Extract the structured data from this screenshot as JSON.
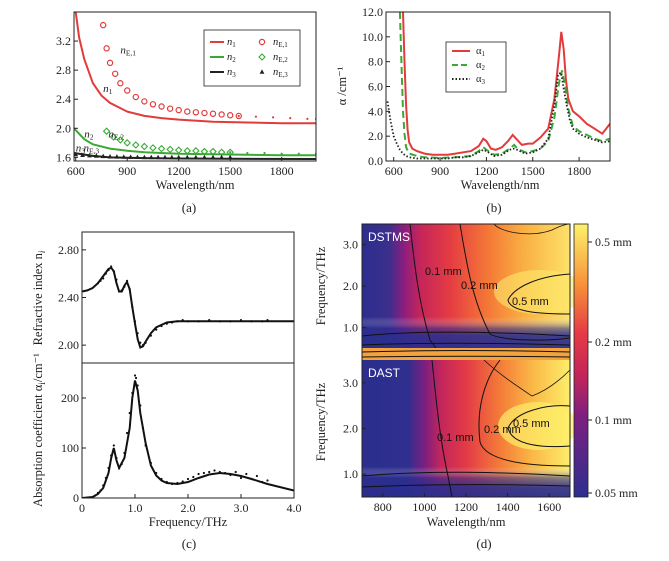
{
  "chart_data": [
    {
      "id": "a",
      "type": "line",
      "caption": "(a)",
      "xlabel": "Wavelength/nm",
      "xlim": [
        590,
        2000
      ],
      "ylim": [
        1.55,
        3.6
      ],
      "x_ticks": [
        "600",
        "900",
        "1200",
        "1500",
        "1800"
      ],
      "y_ticks": [
        "1.6",
        "2.0",
        "2.4",
        "2.8",
        "3.2"
      ],
      "series": [
        {
          "name": "n1",
          "color": "#e23b3b",
          "style": "solid",
          "x": [
            600,
            620,
            650,
            700,
            750,
            800,
            900,
            1000,
            1100,
            1200,
            1400,
            1600,
            1800,
            2000
          ],
          "y": [
            3.6,
            3.25,
            2.95,
            2.62,
            2.45,
            2.35,
            2.23,
            2.17,
            2.14,
            2.12,
            2.09,
            2.08,
            2.07,
            2.07
          ]
        },
        {
          "name": "n2",
          "color": "#3aaa35",
          "style": "solid",
          "x": [
            590,
            650,
            700,
            800,
            900,
            1000,
            1200,
            1500,
            1800,
            2000
          ],
          "y": [
            2.0,
            1.85,
            1.78,
            1.72,
            1.69,
            1.67,
            1.65,
            1.64,
            1.63,
            1.63
          ]
        },
        {
          "name": "n3",
          "color": "#222222",
          "style": "solid",
          "x": [
            590,
            700,
            800,
            1000,
            1200,
            1500,
            2000
          ],
          "y": [
            1.66,
            1.62,
            1.6,
            1.59,
            1.585,
            1.58,
            1.578
          ]
        },
        {
          "name": "nE,1",
          "color": "#e23b3b",
          "style": "circles",
          "x": [
            760,
            780,
            800,
            830,
            860,
            900,
            950,
            1000,
            1050,
            1100,
            1150,
            1200,
            1250,
            1300,
            1350,
            1400,
            1450,
            1500,
            1550
          ],
          "y": [
            3.42,
            3.1,
            2.9,
            2.75,
            2.62,
            2.52,
            2.43,
            2.37,
            2.33,
            2.3,
            2.27,
            2.25,
            2.23,
            2.22,
            2.21,
            2.2,
            2.19,
            2.18,
            2.17
          ]
        },
        {
          "name": "nE,1 fit",
          "color": "#e23b3b",
          "style": "dots",
          "x": [
            1550,
            1650,
            1750,
            1850,
            1950,
            2000
          ],
          "y": [
            2.17,
            2.16,
            2.15,
            2.14,
            2.13,
            2.13
          ]
        },
        {
          "name": "nE,2",
          "color": "#3aaa35",
          "style": "diamonds",
          "x": [
            780,
            820,
            860,
            900,
            950,
            1000,
            1050,
            1100,
            1150,
            1200,
            1250,
            1300,
            1350,
            1400,
            1450,
            1500
          ],
          "y": [
            1.96,
            1.88,
            1.84,
            1.8,
            1.77,
            1.75,
            1.73,
            1.72,
            1.71,
            1.7,
            1.69,
            1.69,
            1.68,
            1.68,
            1.67,
            1.67
          ]
        },
        {
          "name": "nE,2 fit",
          "color": "#3aaa35",
          "style": "dots",
          "x": [
            1500,
            1600,
            1700,
            1800,
            1900,
            2000
          ],
          "y": [
            1.67,
            1.66,
            1.66,
            1.65,
            1.65,
            1.65
          ]
        },
        {
          "name": "nE,3",
          "color": "#222222",
          "style": "triangles",
          "x": [
            600,
            640,
            680,
            720,
            760,
            800,
            840,
            880,
            920,
            960,
            1000,
            1040,
            1080,
            1120,
            1160,
            1200,
            1250,
            1300,
            1350,
            1400,
            1450,
            1500
          ],
          "y": [
            1.64,
            1.63,
            1.625,
            1.62,
            1.615,
            1.61,
            1.608,
            1.606,
            1.604,
            1.602,
            1.6,
            1.6,
            1.6,
            1.6,
            1.6,
            1.6,
            1.6,
            1.6,
            1.6,
            1.6,
            1.6,
            1.6
          ]
        }
      ],
      "annotations": [
        {
          "text": "n",
          "sub": "E,1",
          "x": 860,
          "y": 3.03
        },
        {
          "text": "n",
          "sub": "1",
          "x": 760,
          "y": 2.5
        },
        {
          "text": "n",
          "sub": "2",
          "x": 650,
          "y": 1.87
        },
        {
          "text": "n",
          "sub": "E,2",
          "x": 790,
          "y": 1.87
        },
        {
          "text": "n",
          "sub": "3",
          "x": 600,
          "y": 1.68
        },
        {
          "text": "n",
          "sub": "E,3",
          "x": 645,
          "y": 1.68
        }
      ],
      "legend": {
        "placement": "top-right",
        "items": [
          {
            "label": "n",
            "sub": "1",
            "color": "#e23b3b",
            "mark": "line"
          },
          {
            "label": "n",
            "sub": "E,1",
            "color": "#e23b3b",
            "mark": "circle"
          },
          {
            "label": "n",
            "sub": "2",
            "color": "#3aaa35",
            "mark": "line"
          },
          {
            "label": "n",
            "sub": "E,2",
            "color": "#3aaa35",
            "mark": "diamond"
          },
          {
            "label": "n",
            "sub": "3",
            "color": "#222222",
            "mark": "line"
          },
          {
            "label": "n",
            "sub": "E,3",
            "color": "#222222",
            "mark": "triangle"
          }
        ]
      }
    },
    {
      "id": "b",
      "type": "line",
      "caption": "(b)",
      "xlabel": "Wavelength/nm",
      "ylabel": "α /cm⁻¹",
      "xlim": [
        550,
        2000
      ],
      "ylim": [
        0,
        12
      ],
      "x_ticks": [
        "600",
        "900",
        "1200",
        "1500",
        "1800"
      ],
      "y_ticks": [
        "0.0",
        "2.0",
        "4.0",
        "6.0",
        "8.0",
        "10.0",
        "12.0"
      ],
      "series": [
        {
          "name": "α1",
          "color": "#e23b3b",
          "style": "solid",
          "x": [
            660,
            670,
            680,
            690,
            700,
            720,
            750,
            800,
            850,
            900,
            950,
            1000,
            1050,
            1100,
            1150,
            1180,
            1200,
            1230,
            1260,
            1300,
            1340,
            1370,
            1400,
            1430,
            1470,
            1500,
            1550,
            1600,
            1640,
            1670,
            1685,
            1700,
            1715,
            1730,
            1760,
            1800,
            1850,
            1900,
            1950,
            2000
          ],
          "y": [
            12,
            8,
            4.5,
            2.5,
            1.5,
            1.0,
            0.8,
            0.6,
            0.5,
            0.5,
            0.5,
            0.6,
            0.7,
            0.8,
            1.2,
            1.8,
            1.6,
            1.0,
            0.9,
            1.1,
            1.6,
            2.1,
            1.7,
            1.3,
            1.4,
            1.4,
            1.9,
            2.6,
            5.0,
            8.5,
            10.4,
            9.0,
            6.5,
            5.0,
            4.0,
            3.6,
            3.0,
            2.6,
            2.2,
            3.0
          ]
        },
        {
          "name": "α2",
          "color": "#3aaa35",
          "style": "dashed",
          "x": [
            640,
            650,
            660,
            670,
            680,
            700,
            750,
            800,
            900,
            1000,
            1100,
            1150,
            1180,
            1200,
            1250,
            1300,
            1350,
            1380,
            1400,
            1450,
            1500,
            1550,
            1600,
            1640,
            1670,
            1690,
            1710,
            1730,
            1760,
            1800,
            1850,
            1900,
            1950,
            2000
          ],
          "y": [
            12,
            8,
            4,
            2.2,
            1.1,
            0.6,
            0.4,
            0.3,
            0.25,
            0.3,
            0.4,
            0.8,
            1.1,
            0.9,
            0.5,
            0.6,
            1.0,
            1.3,
            1.0,
            0.7,
            0.8,
            1.0,
            1.6,
            3.5,
            6.3,
            7.3,
            6.0,
            4.2,
            2.8,
            2.4,
            2.1,
            1.8,
            1.6,
            1.8
          ]
        },
        {
          "name": "α3",
          "color": "#222222",
          "style": "dotted",
          "x": [
            560,
            580,
            600,
            620,
            640,
            660,
            680,
            700,
            750,
            800,
            850,
            900,
            950,
            1000,
            1050,
            1100,
            1150,
            1180,
            1200,
            1250,
            1300,
            1350,
            1380,
            1400,
            1450,
            1500,
            1550,
            1600,
            1640,
            1665,
            1685,
            1700,
            1720,
            1740,
            1760,
            1800,
            1850,
            1900,
            1950,
            2000
          ],
          "y": [
            4.8,
            3.2,
            2.0,
            1.4,
            0.9,
            0.6,
            0.4,
            0.3,
            0.2,
            0.2,
            0.2,
            0.2,
            0.2,
            0.3,
            0.3,
            0.4,
            0.7,
            0.9,
            0.8,
            0.4,
            0.5,
            0.9,
            1.0,
            0.9,
            0.6,
            0.7,
            1.0,
            1.8,
            4.5,
            7.0,
            7.1,
            5.8,
            4.5,
            3.3,
            2.6,
            2.2,
            1.9,
            1.7,
            1.5,
            1.6
          ]
        }
      ],
      "legend": {
        "placement": "top-left",
        "items": [
          {
            "label": "α",
            "sub": "1",
            "color": "#e23b3b",
            "mark": "solid"
          },
          {
            "label": "α",
            "sub": "2",
            "color": "#3aaa35",
            "mark": "dashed"
          },
          {
            "label": "α",
            "sub": "3",
            "color": "#222222",
            "mark": "dotted"
          }
        ]
      }
    },
    {
      "id": "c-top",
      "type": "line",
      "ylabel": "Refractive index n",
      "ylabel_sub": "i",
      "xlim": [
        0,
        4.0
      ],
      "ylim": [
        1.85,
        2.95
      ],
      "y_ticks": [
        "2.00",
        "2.40",
        "2.80"
      ],
      "series": [
        {
          "name": "fit",
          "color": "#111111",
          "style": "solid",
          "x": [
            0,
            0.1,
            0.2,
            0.3,
            0.4,
            0.5,
            0.55,
            0.6,
            0.65,
            0.7,
            0.75,
            0.8,
            0.85,
            0.9,
            0.95,
            1.0,
            1.05,
            1.1,
            1.15,
            1.2,
            1.3,
            1.4,
            1.5,
            1.6,
            1.8,
            2.0,
            2.5,
            3.0,
            3.5,
            4.0
          ],
          "y": [
            2.45,
            2.46,
            2.48,
            2.52,
            2.58,
            2.64,
            2.65,
            2.62,
            2.52,
            2.45,
            2.45,
            2.5,
            2.53,
            2.47,
            2.32,
            2.18,
            2.05,
            1.98,
            1.99,
            2.03,
            2.1,
            2.15,
            2.17,
            2.19,
            2.2,
            2.2,
            2.2,
            2.2,
            2.2,
            2.2
          ]
        },
        {
          "name": "data",
          "color": "#111111",
          "style": "dots",
          "x": [
            0.3,
            0.35,
            0.4,
            0.45,
            0.5,
            0.55,
            0.6,
            0.65,
            0.7,
            0.75,
            0.8,
            0.85,
            0.9,
            0.95,
            1.0,
            1.05,
            1.1,
            1.15,
            1.2,
            1.3,
            1.4,
            1.5,
            1.6,
            1.7,
            1.8,
            1.9,
            2.0,
            2.2,
            2.4,
            2.6,
            2.8,
            3.0,
            3.2,
            3.4,
            3.5
          ],
          "y": [
            2.52,
            2.54,
            2.56,
            2.6,
            2.63,
            2.66,
            2.62,
            2.55,
            2.45,
            2.46,
            2.49,
            2.54,
            2.47,
            2.32,
            2.2,
            2.1,
            2.02,
            2.0,
            2.02,
            2.08,
            2.13,
            2.16,
            2.18,
            2.19,
            2.2,
            2.21,
            2.2,
            2.2,
            2.21,
            2.2,
            2.2,
            2.21,
            2.2,
            2.2,
            2.21
          ]
        }
      ]
    },
    {
      "id": "c-bottom",
      "type": "line",
      "caption": "(c)",
      "xlabel": "Frequency/THz",
      "ylabel": "Absorption coefficient  α",
      "ylabel_sub": "i",
      "ylabel_unit": "/cm⁻¹",
      "xlim": [
        0,
        4.0
      ],
      "ylim": [
        0,
        270
      ],
      "x_ticks": [
        "0",
        "1.0",
        "2.0",
        "3.0",
        "4.0"
      ],
      "y_ticks": [
        "0",
        "100",
        "200"
      ],
      "series": [
        {
          "name": "fit",
          "color": "#111111",
          "style": "solid",
          "x": [
            0,
            0.2,
            0.3,
            0.4,
            0.5,
            0.55,
            0.6,
            0.65,
            0.7,
            0.8,
            0.9,
            0.95,
            1.0,
            1.05,
            1.1,
            1.2,
            1.3,
            1.4,
            1.5,
            1.6,
            1.8,
            2.0,
            2.2,
            2.4,
            2.6,
            2.8,
            3.0,
            3.2,
            3.5,
            4.0
          ],
          "y": [
            0,
            2,
            8,
            20,
            50,
            80,
            100,
            75,
            60,
            80,
            140,
            200,
            235,
            215,
            170,
            110,
            65,
            45,
            35,
            30,
            28,
            32,
            40,
            47,
            50,
            48,
            44,
            38,
            28,
            15
          ]
        },
        {
          "name": "data",
          "color": "#111111",
          "style": "dots",
          "x": [
            0.25,
            0.3,
            0.35,
            0.4,
            0.45,
            0.5,
            0.55,
            0.6,
            0.65,
            0.7,
            0.75,
            0.8,
            0.85,
            0.9,
            0.95,
            1.0,
            1.02,
            1.05,
            1.1,
            1.15,
            1.2,
            1.3,
            1.4,
            1.5,
            1.6,
            1.7,
            1.8,
            1.9,
            2.0,
            2.1,
            2.2,
            2.3,
            2.4,
            2.5,
            2.6,
            2.7,
            2.8,
            2.9,
            3.0,
            3.1,
            3.2,
            3.3,
            3.4,
            3.5
          ],
          "y": [
            5,
            10,
            15,
            25,
            40,
            60,
            85,
            105,
            80,
            60,
            68,
            90,
            130,
            170,
            210,
            245,
            240,
            225,
            185,
            140,
            105,
            70,
            50,
            38,
            32,
            28,
            30,
            33,
            38,
            42,
            48,
            50,
            52,
            55,
            52,
            50,
            46,
            52,
            40,
            48,
            38,
            44,
            32,
            35
          ]
        }
      ]
    },
    {
      "id": "d",
      "type": "heatmap",
      "caption": "(d)",
      "xlabel": "Wavelength/nm",
      "ylabel": "Frequency/THz",
      "xlim": [
        700,
        1700
      ],
      "x_ticks": [
        "800",
        "1000",
        "1200",
        "1400",
        "1600"
      ],
      "panels": [
        {
          "title": "DSTMS",
          "ylim": [
            0.5,
            3.5
          ],
          "y_ticks": [
            "1.0",
            "2.0",
            "3.0"
          ],
          "contour_labels": [
            "0.1 mm",
            "0.2 mm",
            "0.5 mm"
          ]
        },
        {
          "title": "DAST",
          "ylim": [
            0.5,
            3.5
          ],
          "y_ticks": [
            "1.0",
            "2.0",
            "3.0"
          ],
          "contour_labels": [
            "0.1 mm",
            "0.2 mm",
            "0.5 mm"
          ]
        }
      ],
      "colorbar": {
        "ticks": [
          "0.5 mm",
          "0.2 mm",
          "0.1 mm",
          "0.05 mm"
        ],
        "colors": [
          "#2c2f8f",
          "#a51a78",
          "#e23a4a",
          "#f59a3a",
          "#fdf26a"
        ]
      }
    }
  ]
}
